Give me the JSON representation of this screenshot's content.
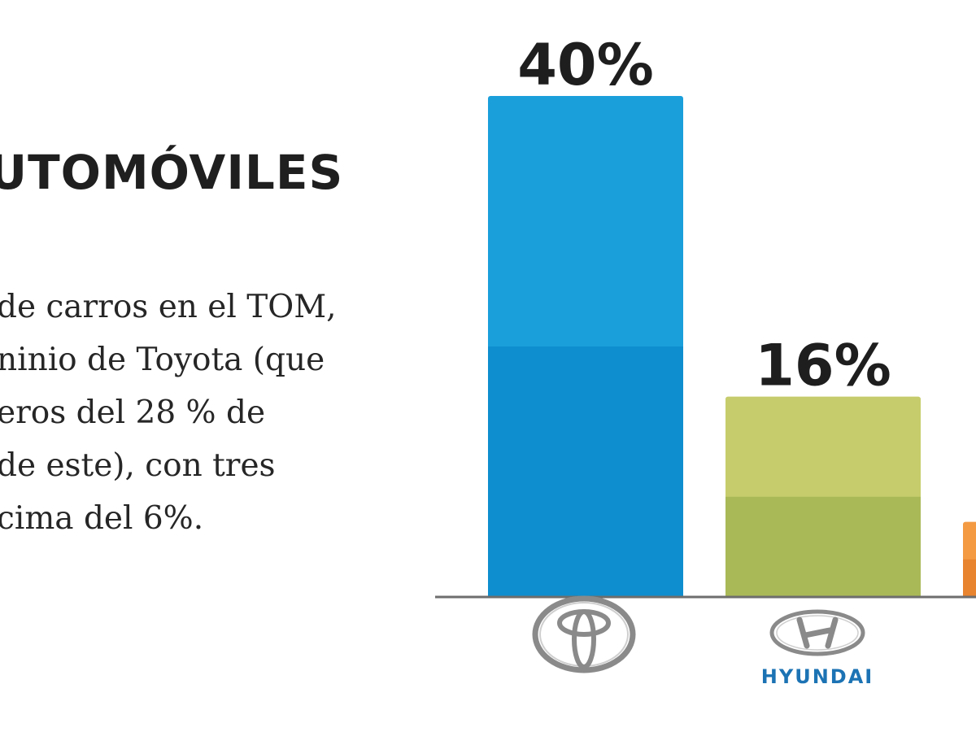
{
  "heading": "UTOMÓVILES",
  "body_lines": [
    "de carros en el TOM,",
    "ninio de Toyota (que",
    "eros del 28 % de",
    "de este), con tres",
    "cima del 6%."
  ],
  "chart_data": {
    "type": "bar",
    "categories": [
      "Toyota",
      "Hyundai",
      ""
    ],
    "values": [
      40,
      16,
      6
    ],
    "data_labels": [
      "40%",
      "16%",
      ""
    ],
    "brand_wordmarks": [
      "",
      "HYUNDAI",
      ""
    ],
    "ylim": [
      0,
      40
    ],
    "grid": false,
    "legend": "none",
    "colors": {
      "bar_light": [
        "#1a9fdb",
        "#c6cc6c",
        "#f39a43"
      ],
      "bar_dark": [
        "#0e8ecf",
        "#aab957",
        "#e8832f"
      ],
      "baseline": "#6e6e6e",
      "hyundai_text": "#1c73b4",
      "logo_silver": "#8a8a8a"
    },
    "icons": [
      "toyota-logo-icon",
      "hyundai-logo-icon"
    ]
  }
}
